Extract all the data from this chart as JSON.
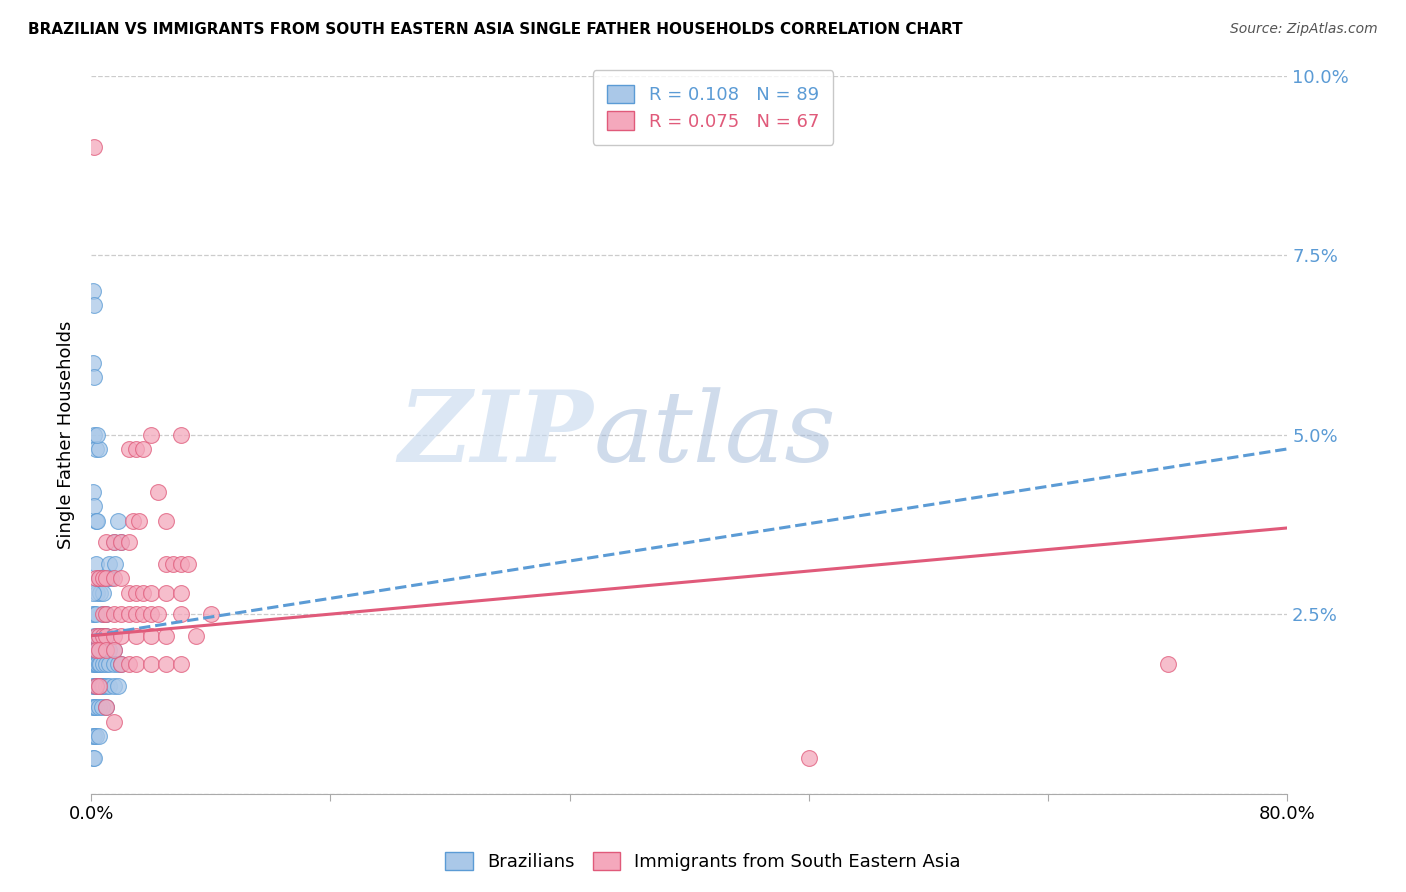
{
  "title": "BRAZILIAN VS IMMIGRANTS FROM SOUTH EASTERN ASIA SINGLE FATHER HOUSEHOLDS CORRELATION CHART",
  "source": "Source: ZipAtlas.com",
  "ylabel": "Single Father Households",
  "yticks": [
    0.0,
    0.025,
    0.05,
    0.075,
    0.1
  ],
  "ytick_labels": [
    "",
    "2.5%",
    "5.0%",
    "7.5%",
    "10.0%"
  ],
  "xticks": [
    0.0,
    0.16,
    0.32,
    0.48,
    0.64,
    0.8
  ],
  "xtick_labels": [
    "0.0%",
    "",
    "",
    "",
    "",
    "80.0%"
  ],
  "xmin": 0.0,
  "xmax": 0.8,
  "ymin": 0.0,
  "ymax": 0.1,
  "brazilian_color": "#aac8e8",
  "immigrant_color": "#f4a8bc",
  "trendline_brazilian_color": "#5b9bd5",
  "trendline_immigrant_color": "#e05a7a",
  "R_brazilian": 0.108,
  "N_brazilian": 89,
  "R_immigrant": 0.075,
  "N_immigrant": 67,
  "watermark_zip": "ZIP",
  "watermark_atlas": "atlas",
  "brazilian_scatter": [
    [
      0.001,
      0.07
    ],
    [
      0.002,
      0.068
    ],
    [
      0.001,
      0.06
    ],
    [
      0.002,
      0.058
    ],
    [
      0.002,
      0.05
    ],
    [
      0.003,
      0.048
    ],
    [
      0.001,
      0.042
    ],
    [
      0.002,
      0.04
    ],
    [
      0.003,
      0.038
    ],
    [
      0.004,
      0.038
    ],
    [
      0.005,
      0.048
    ],
    [
      0.004,
      0.05
    ],
    [
      0.003,
      0.032
    ],
    [
      0.005,
      0.03
    ],
    [
      0.006,
      0.03
    ],
    [
      0.004,
      0.028
    ],
    [
      0.006,
      0.028
    ],
    [
      0.008,
      0.028
    ],
    [
      0.007,
      0.025
    ],
    [
      0.009,
      0.025
    ],
    [
      0.01,
      0.025
    ],
    [
      0.011,
      0.03
    ],
    [
      0.012,
      0.032
    ],
    [
      0.013,
      0.03
    ],
    [
      0.015,
      0.035
    ],
    [
      0.016,
      0.032
    ],
    [
      0.018,
      0.038
    ],
    [
      0.02,
      0.035
    ],
    [
      0.001,
      0.028
    ],
    [
      0.002,
      0.025
    ],
    [
      0.001,
      0.025
    ],
    [
      0.003,
      0.025
    ],
    [
      0.002,
      0.022
    ],
    [
      0.004,
      0.022
    ],
    [
      0.005,
      0.022
    ],
    [
      0.006,
      0.022
    ],
    [
      0.007,
      0.022
    ],
    [
      0.008,
      0.022
    ],
    [
      0.009,
      0.022
    ],
    [
      0.01,
      0.022
    ],
    [
      0.001,
      0.02
    ],
    [
      0.002,
      0.02
    ],
    [
      0.003,
      0.02
    ],
    [
      0.004,
      0.02
    ],
    [
      0.005,
      0.02
    ],
    [
      0.006,
      0.02
    ],
    [
      0.007,
      0.02
    ],
    [
      0.008,
      0.02
    ],
    [
      0.009,
      0.02
    ],
    [
      0.01,
      0.02
    ],
    [
      0.012,
      0.02
    ],
    [
      0.015,
      0.02
    ],
    [
      0.001,
      0.018
    ],
    [
      0.002,
      0.018
    ],
    [
      0.003,
      0.018
    ],
    [
      0.004,
      0.018
    ],
    [
      0.005,
      0.018
    ],
    [
      0.006,
      0.018
    ],
    [
      0.008,
      0.018
    ],
    [
      0.01,
      0.018
    ],
    [
      0.012,
      0.018
    ],
    [
      0.015,
      0.018
    ],
    [
      0.018,
      0.018
    ],
    [
      0.02,
      0.018
    ],
    [
      0.001,
      0.015
    ],
    [
      0.002,
      0.015
    ],
    [
      0.003,
      0.015
    ],
    [
      0.004,
      0.015
    ],
    [
      0.005,
      0.015
    ],
    [
      0.006,
      0.015
    ],
    [
      0.007,
      0.015
    ],
    [
      0.008,
      0.015
    ],
    [
      0.01,
      0.015
    ],
    [
      0.012,
      0.015
    ],
    [
      0.015,
      0.015
    ],
    [
      0.018,
      0.015
    ],
    [
      0.001,
      0.012
    ],
    [
      0.002,
      0.012
    ],
    [
      0.003,
      0.012
    ],
    [
      0.005,
      0.012
    ],
    [
      0.007,
      0.012
    ],
    [
      0.01,
      0.012
    ],
    [
      0.001,
      0.008
    ],
    [
      0.002,
      0.008
    ],
    [
      0.003,
      0.008
    ],
    [
      0.005,
      0.008
    ],
    [
      0.001,
      0.005
    ],
    [
      0.002,
      0.005
    ]
  ],
  "immigrant_scatter": [
    [
      0.002,
      0.09
    ],
    [
      0.025,
      0.048
    ],
    [
      0.03,
      0.048
    ],
    [
      0.035,
      0.048
    ],
    [
      0.04,
      0.05
    ],
    [
      0.045,
      0.042
    ],
    [
      0.05,
      0.038
    ],
    [
      0.028,
      0.038
    ],
    [
      0.032,
      0.038
    ],
    [
      0.01,
      0.035
    ],
    [
      0.015,
      0.035
    ],
    [
      0.02,
      0.035
    ],
    [
      0.025,
      0.035
    ],
    [
      0.06,
      0.05
    ],
    [
      0.05,
      0.032
    ],
    [
      0.055,
      0.032
    ],
    [
      0.06,
      0.032
    ],
    [
      0.065,
      0.032
    ],
    [
      0.003,
      0.03
    ],
    [
      0.005,
      0.03
    ],
    [
      0.008,
      0.03
    ],
    [
      0.01,
      0.03
    ],
    [
      0.015,
      0.03
    ],
    [
      0.02,
      0.03
    ],
    [
      0.025,
      0.028
    ],
    [
      0.03,
      0.028
    ],
    [
      0.035,
      0.028
    ],
    [
      0.04,
      0.028
    ],
    [
      0.05,
      0.028
    ],
    [
      0.06,
      0.028
    ],
    [
      0.008,
      0.025
    ],
    [
      0.01,
      0.025
    ],
    [
      0.015,
      0.025
    ],
    [
      0.02,
      0.025
    ],
    [
      0.025,
      0.025
    ],
    [
      0.03,
      0.025
    ],
    [
      0.035,
      0.025
    ],
    [
      0.04,
      0.025
    ],
    [
      0.045,
      0.025
    ],
    [
      0.06,
      0.025
    ],
    [
      0.08,
      0.025
    ],
    [
      0.003,
      0.022
    ],
    [
      0.005,
      0.022
    ],
    [
      0.008,
      0.022
    ],
    [
      0.01,
      0.022
    ],
    [
      0.015,
      0.022
    ],
    [
      0.02,
      0.022
    ],
    [
      0.03,
      0.022
    ],
    [
      0.04,
      0.022
    ],
    [
      0.05,
      0.022
    ],
    [
      0.07,
      0.022
    ],
    [
      0.003,
      0.02
    ],
    [
      0.005,
      0.02
    ],
    [
      0.01,
      0.02
    ],
    [
      0.015,
      0.02
    ],
    [
      0.02,
      0.018
    ],
    [
      0.025,
      0.018
    ],
    [
      0.03,
      0.018
    ],
    [
      0.04,
      0.018
    ],
    [
      0.05,
      0.018
    ],
    [
      0.06,
      0.018
    ],
    [
      0.003,
      0.015
    ],
    [
      0.005,
      0.015
    ],
    [
      0.01,
      0.012
    ],
    [
      0.015,
      0.01
    ],
    [
      0.72,
      0.018
    ],
    [
      0.48,
      0.005
    ]
  ]
}
